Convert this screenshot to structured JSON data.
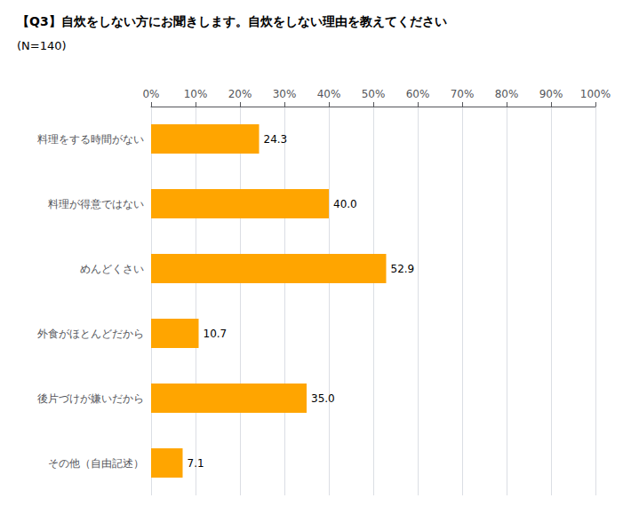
{
  "chart_data": {
    "type": "bar",
    "orientation": "horizontal",
    "title": "【Q3】自炊をしない方にお聞きします。自炊をしない理由を教えてください",
    "subtitle": "(N=140)",
    "categories": [
      "料理をする時間がない",
      "料理が得意ではない",
      "めんどくさい",
      "外食がほとんどだから",
      "後片づけが嫌いだから",
      "その他（自由記述）"
    ],
    "values": [
      24.3,
      40.0,
      52.9,
      10.7,
      35.0,
      7.1
    ],
    "value_labels": [
      "24.3",
      "40.0",
      "52.9",
      "10.7",
      "35.0",
      "7.1"
    ],
    "data_labels": true,
    "color": "#FFA500",
    "xlim": [
      0,
      100
    ],
    "xticks": [
      {
        "value": 0,
        "label": "0%"
      },
      {
        "value": 10,
        "label": "10%"
      },
      {
        "value": 20,
        "label": "20%"
      },
      {
        "value": 30,
        "label": "30%"
      },
      {
        "value": 40,
        "label": "40%"
      },
      {
        "value": 50,
        "label": "50%"
      },
      {
        "value": 60,
        "label": "60%"
      },
      {
        "value": 70,
        "label": "70%"
      },
      {
        "value": 80,
        "label": "80%"
      },
      {
        "value": 90,
        "label": "90%"
      },
      {
        "value": 100,
        "label": "100%"
      }
    ],
    "grid": true
  }
}
